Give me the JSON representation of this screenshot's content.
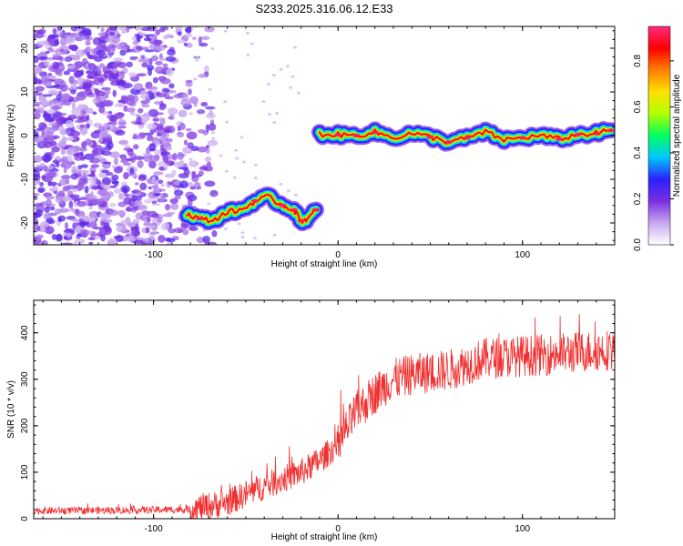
{
  "title": "S233.2025.316.06.12.E33",
  "chart_data": [
    {
      "type": "heatmap",
      "xlabel": "Height of straight line (km)",
      "ylabel": "Frequency (Hz)",
      "xlim": [
        -165,
        150
      ],
      "ylim": [
        -25,
        25
      ],
      "xticks": [
        -100,
        0,
        100
      ],
      "yticks": [
        20,
        10,
        0,
        -10,
        -20
      ],
      "colorbar": {
        "label": "Normalized spectral amplitude",
        "range": [
          0,
          0.95
        ],
        "ticks": [
          0.0,
          0.2,
          0.4,
          0.6,
          0.8
        ],
        "colors": [
          "#ffffff",
          "#c8a8f0",
          "#7a2ee0",
          "#2a20ff",
          "#00c8ff",
          "#00ff60",
          "#b0ff00",
          "#ffe000",
          "#ff8000",
          "#ff0000",
          "#ff2a80"
        ]
      },
      "ridge": {
        "segments": [
          {
            "x": [
              -82,
              -75,
              -68,
              -60,
              -52,
              -45,
              -38,
              -30,
              -24,
              -20,
              -16,
              -12
            ],
            "y": [
              -18,
              -19,
              -19.5,
              -17.5,
              -17,
              -15,
              -14,
              -16,
              -17,
              -19.5,
              -19,
              -17
            ]
          },
          {
            "x": [
              -10,
              0,
              10,
              20,
              30,
              40,
              50,
              60,
              70,
              80,
              90,
              100,
              110,
              120,
              130,
              140,
              148
            ],
            "y": [
              0.3,
              0.2,
              0,
              0.8,
              -0.5,
              0.5,
              -0.3,
              -1.5,
              -0.5,
              0.8,
              -1,
              -0.5,
              0,
              -0.8,
              0.2,
              0.5,
              1.2
            ]
          }
        ],
        "peak_amplitude": 0.95
      },
      "noise_region": {
        "x": [
          -165,
          -80
        ],
        "y": [
          -25,
          25
        ]
      }
    },
    {
      "type": "line",
      "xlabel": "Height of straight line (km)",
      "ylabel": "SNR (10 * v/v)",
      "xlim": [
        -165,
        150
      ],
      "ylim": [
        0,
        470
      ],
      "xticks": [
        -100,
        0,
        100
      ],
      "yticks": [
        0,
        100,
        200,
        300,
        400
      ],
      "color": "#f03030",
      "trend": {
        "x": [
          -165,
          -120,
          -80,
          -60,
          -40,
          -20,
          -10,
          0,
          10,
          20,
          30,
          40,
          60,
          80,
          100,
          120,
          150
        ],
        "y": [
          17,
          18,
          20,
          35,
          70,
          100,
          125,
          160,
          230,
          270,
          300,
          310,
          320,
          345,
          350,
          355,
          365
        ]
      }
    }
  ]
}
